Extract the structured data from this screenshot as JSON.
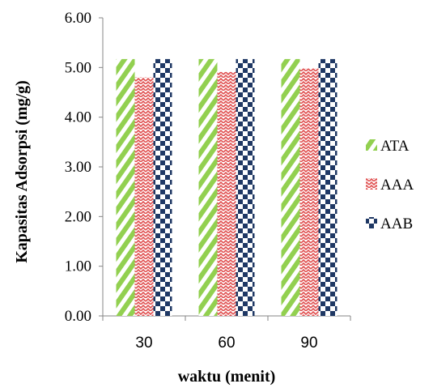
{
  "chart_data": {
    "type": "bar",
    "categories": [
      "30",
      "60",
      "90"
    ],
    "series": [
      {
        "name": "ATA",
        "values": [
          5.17,
          5.17,
          5.17
        ]
      },
      {
        "name": "AAA",
        "values": [
          4.8,
          4.91,
          4.98
        ]
      },
      {
        "name": "AAB",
        "values": [
          5.17,
          5.17,
          5.17
        ]
      }
    ],
    "title": "",
    "xlabel": "waktu (menit)",
    "ylabel": "Kapasitas Adsorpsi (mg/g)",
    "ylim": [
      0,
      6
    ],
    "yticks": [
      "0.00",
      "1.00",
      "2.00",
      "3.00",
      "4.00",
      "5.00",
      "6.00"
    ],
    "grid": false,
    "legend_position": "right",
    "colors": {
      "ATA": "#92d050",
      "AAA": "#e05050",
      "AAB": "#1f3864"
    }
  }
}
